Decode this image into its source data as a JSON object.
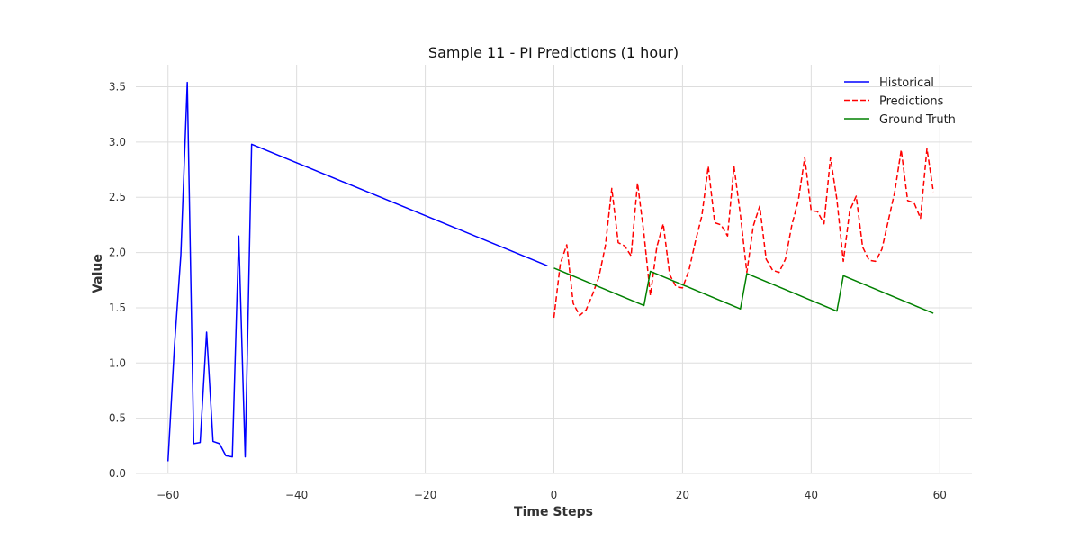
{
  "chart_data": {
    "type": "line",
    "title": "Sample 11 - PI Predictions (1 hour)",
    "xlabel": "Time Steps",
    "ylabel": "Value",
    "xlim": [
      -65,
      65
    ],
    "ylim": [
      0,
      3.7
    ],
    "x_ticks": [
      -60,
      -40,
      -20,
      0,
      20,
      40,
      60
    ],
    "x_tick_labels": [
      "−60",
      "−40",
      "−20",
      "0",
      "20",
      "40",
      "60"
    ],
    "y_ticks": [
      0.0,
      0.5,
      1.0,
      1.5,
      2.0,
      2.5,
      3.0,
      3.5
    ],
    "y_tick_labels": [
      "0.0",
      "0.5",
      "1.0",
      "1.5",
      "2.0",
      "2.5",
      "3.0",
      "3.5"
    ],
    "grid": true,
    "legend_position": "top-right",
    "series": [
      {
        "name": "Historical",
        "color": "#0000ff",
        "style": "solid",
        "points": [
          [
            -60,
            0.11
          ],
          [
            -59,
            1.15
          ],
          [
            -58,
            1.98
          ],
          [
            -57,
            3.54
          ],
          [
            -56,
            0.27
          ],
          [
            -55,
            0.28
          ],
          [
            -54,
            1.28
          ],
          [
            -53,
            0.29
          ],
          [
            -52,
            0.27
          ],
          [
            -51,
            0.16
          ],
          [
            -50,
            0.15
          ],
          [
            -49,
            2.15
          ],
          [
            -48,
            0.15
          ],
          [
            -47,
            2.98
          ],
          [
            -1,
            1.88
          ]
        ]
      },
      {
        "name": "Predictions",
        "color": "#ff0000",
        "style": "dashed",
        "points": [
          [
            0,
            1.41
          ],
          [
            1,
            1.9
          ],
          [
            2,
            2.07
          ],
          [
            3,
            1.54
          ],
          [
            4,
            1.43
          ],
          [
            5,
            1.48
          ],
          [
            6,
            1.62
          ],
          [
            7,
            1.78
          ],
          [
            8,
            2.06
          ],
          [
            9,
            2.58
          ],
          [
            10,
            2.09
          ],
          [
            11,
            2.06
          ],
          [
            12,
            1.97
          ],
          [
            13,
            2.63
          ],
          [
            14,
            2.17
          ],
          [
            15,
            1.61
          ],
          [
            16,
            2.05
          ],
          [
            17,
            2.26
          ],
          [
            18,
            1.8
          ],
          [
            19,
            1.69
          ],
          [
            20,
            1.68
          ],
          [
            21,
            1.84
          ],
          [
            22,
            2.1
          ],
          [
            23,
            2.33
          ],
          [
            24,
            2.78
          ],
          [
            25,
            2.27
          ],
          [
            26,
            2.25
          ],
          [
            27,
            2.15
          ],
          [
            28,
            2.78
          ],
          [
            29,
            2.34
          ],
          [
            30,
            1.82
          ],
          [
            31,
            2.24
          ],
          [
            32,
            2.42
          ],
          [
            33,
            1.94
          ],
          [
            34,
            1.84
          ],
          [
            35,
            1.82
          ],
          [
            36,
            1.94
          ],
          [
            37,
            2.25
          ],
          [
            38,
            2.47
          ],
          [
            39,
            2.86
          ],
          [
            40,
            2.38
          ],
          [
            41,
            2.37
          ],
          [
            42,
            2.26
          ],
          [
            43,
            2.86
          ],
          [
            44,
            2.48
          ],
          [
            45,
            1.92
          ],
          [
            46,
            2.38
          ],
          [
            47,
            2.51
          ],
          [
            48,
            2.05
          ],
          [
            49,
            1.93
          ],
          [
            50,
            1.92
          ],
          [
            51,
            2.03
          ],
          [
            52,
            2.29
          ],
          [
            53,
            2.55
          ],
          [
            54,
            2.93
          ],
          [
            55,
            2.47
          ],
          [
            56,
            2.45
          ],
          [
            57,
            2.31
          ],
          [
            58,
            2.94
          ],
          [
            59,
            2.55
          ]
        ]
      },
      {
        "name": "Ground Truth",
        "color": "#008000",
        "style": "solid",
        "points": [
          [
            0,
            1.86
          ],
          [
            14,
            1.52
          ],
          [
            15,
            1.83
          ],
          [
            29,
            1.49
          ],
          [
            30,
            1.81
          ],
          [
            44,
            1.47
          ],
          [
            45,
            1.79
          ],
          [
            59,
            1.45
          ]
        ]
      }
    ]
  }
}
